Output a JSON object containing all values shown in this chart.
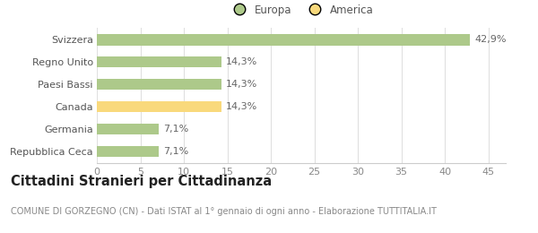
{
  "categories": [
    "Repubblica Ceca",
    "Germania",
    "Canada",
    "Paesi Bassi",
    "Regno Unito",
    "Svizzera"
  ],
  "values": [
    7.1,
    7.1,
    14.3,
    14.3,
    14.3,
    42.9
  ],
  "labels": [
    "7,1%",
    "7,1%",
    "14,3%",
    "14,3%",
    "14,3%",
    "42,9%"
  ],
  "bar_colors": [
    "#adc98a",
    "#adc98a",
    "#f9d97c",
    "#adc98a",
    "#adc98a",
    "#adc98a"
  ],
  "legend_items": [
    {
      "label": "Europa",
      "color": "#adc98a"
    },
    {
      "label": "America",
      "color": "#f9d97c"
    }
  ],
  "xlim": [
    0,
    47
  ],
  "xticks": [
    0,
    5,
    10,
    15,
    20,
    25,
    30,
    35,
    40,
    45
  ],
  "title": "Cittadini Stranieri per Cittadinanza",
  "subtitle": "COMUNE DI GORZEGNO (CN) - Dati ISTAT al 1° gennaio di ogni anno - Elaborazione TUTTITALIA.IT",
  "background_color": "#ffffff",
  "bar_height": 0.5,
  "label_fontsize": 8,
  "title_fontsize": 10.5,
  "subtitle_fontsize": 7,
  "tick_fontsize": 8,
  "legend_fontsize": 8.5
}
